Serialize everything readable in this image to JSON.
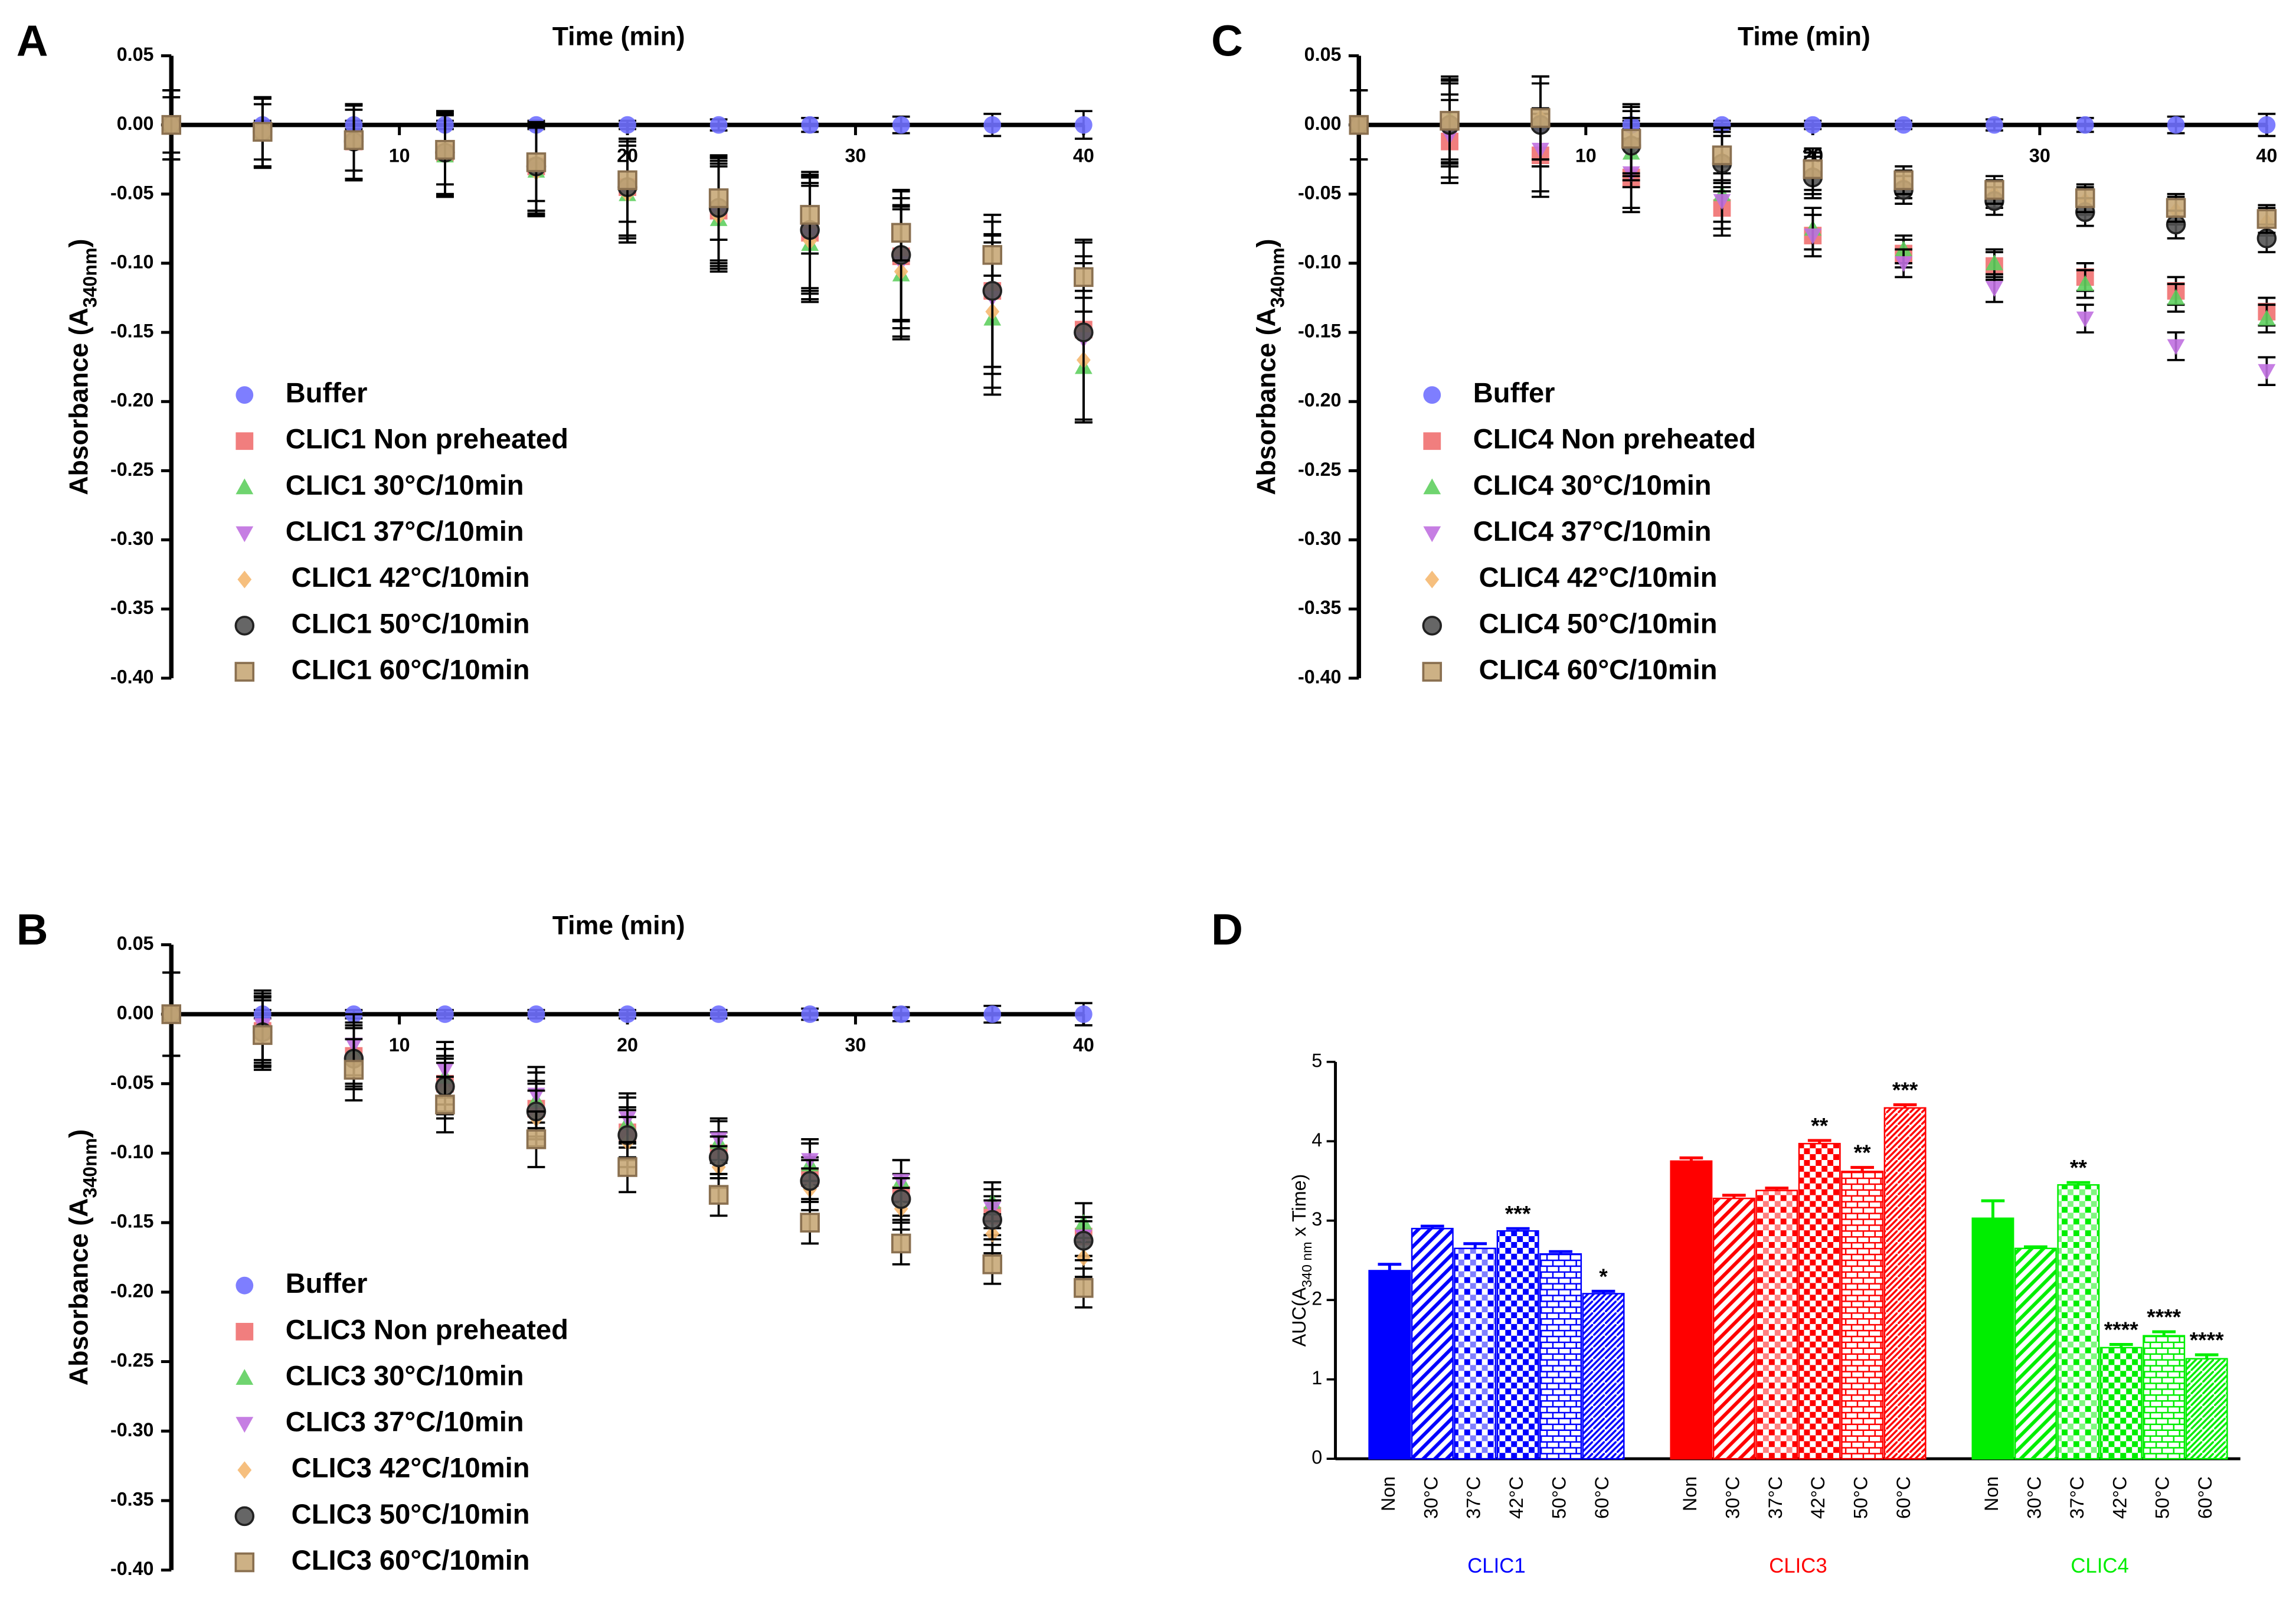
{
  "chart_data": [
    {
      "type": "scatter",
      "panel": "A",
      "xlabel": "Time (min)",
      "ylabel_parts": [
        "Absorbance (A",
        "340nm",
        ")"
      ],
      "xlim": [
        0,
        40
      ],
      "xticks": [
        10,
        20,
        30,
        40
      ],
      "ylim": [
        -0.4,
        0.05
      ],
      "yticks": [
        0.05,
        {
          "value": 0,
          "label": "0.00"
        },
        -0.05,
        {
          "value": -0.1,
          "label": "-0.10"
        },
        -0.15,
        {
          "value": -0.2,
          "label": "-0.20"
        },
        -0.25,
        {
          "value": -0.3,
          "label": "-0.30"
        },
        -0.35,
        {
          "value": -0.4,
          "label": "-0.40"
        }
      ],
      "legend": "lower left",
      "x": [
        0,
        4,
        8,
        12,
        16,
        20,
        24,
        28,
        32,
        36,
        40
      ],
      "series": [
        {
          "name": "Buffer",
          "color": "#7070ff",
          "marker": "circle",
          "values": [
            0,
            0,
            0,
            0,
            0,
            0,
            0,
            0,
            0,
            0,
            0
          ],
          "errors": [
            0.003,
            0.003,
            0.003,
            0.003,
            0.003,
            0.003,
            0.004,
            0.005,
            0.006,
            0.008,
            0.01
          ]
        },
        {
          "name": "CLIC1 Non preheated",
          "color": "#f07070",
          "marker": "square",
          "values": [
            0,
            -0.005,
            -0.012,
            -0.02,
            -0.03,
            -0.045,
            -0.062,
            -0.078,
            -0.095,
            -0.12,
            -0.148
          ],
          "errors": [
            0.025,
            0.025,
            0.027,
            0.03,
            0.032,
            0.035,
            0.038,
            0.042,
            0.047,
            0.055,
            0.065
          ]
        },
        {
          "name": "CLIC1 30°C/10min",
          "color": "#5fcf5f",
          "marker": "triangle",
          "values": [
            0,
            -0.006,
            -0.013,
            -0.022,
            -0.033,
            -0.05,
            -0.068,
            -0.086,
            -0.108,
            -0.14,
            -0.175
          ],
          "errors": [
            0.025,
            0.025,
            0.027,
            0.03,
            0.032,
            0.035,
            0.038,
            0.042,
            0.047,
            0.055,
            0.04
          ]
        },
        {
          "name": "CLIC1 37°C/10min",
          "color": "#c070e0",
          "marker": "triangle-down",
          "values": [
            0,
            -0.005,
            -0.012,
            -0.021,
            -0.032,
            -0.047,
            -0.064,
            -0.08,
            -0.1,
            -0.125,
            -0.155
          ],
          "errors": [
            0.025,
            0.025,
            0.027,
            0.03,
            0.032,
            0.035,
            0.038,
            0.042,
            0.047,
            0.055,
            0.06
          ]
        },
        {
          "name": "CLIC1 42°C/10min",
          "color": "#f5b870",
          "marker": "diamond",
          "values": [
            0,
            -0.006,
            -0.013,
            -0.022,
            -0.034,
            -0.05,
            -0.066,
            -0.084,
            -0.106,
            -0.135,
            -0.17
          ],
          "errors": [
            0.025,
            0.025,
            0.027,
            0.03,
            0.032,
            0.035,
            0.038,
            0.042,
            0.047,
            0.055,
            0.045
          ]
        },
        {
          "name": "CLIC1 50°C/10min",
          "color": "#555555",
          "edgecolor": "#222222",
          "marker": "circle",
          "values": [
            0,
            -0.005,
            -0.012,
            -0.02,
            -0.03,
            -0.045,
            -0.06,
            -0.076,
            -0.094,
            -0.12,
            -0.15
          ],
          "errors": [
            0.025,
            0.025,
            0.027,
            0.03,
            0.032,
            0.035,
            0.038,
            0.042,
            0.047,
            0.055,
            0.065
          ]
        },
        {
          "name": "CLIC1 60°C/10min",
          "color": "#c8a878",
          "edgecolor": "#8a7050",
          "marker": "square",
          "values": [
            0,
            -0.005,
            -0.011,
            -0.018,
            -0.027,
            -0.04,
            -0.053,
            -0.065,
            -0.078,
            -0.094,
            -0.11
          ],
          "errors": [
            0.02,
            0.02,
            0.022,
            0.025,
            0.028,
            0.03,
            0.03,
            0.028,
            0.02,
            0.015,
            0.01
          ]
        }
      ]
    },
    {
      "type": "scatter",
      "panel": "B",
      "xlabel": "Time (min)",
      "ylabel_parts": [
        "Absorbance (A",
        "340nm",
        ")"
      ],
      "xlim": [
        0,
        40
      ],
      "xticks": [
        10,
        20,
        30,
        40
      ],
      "ylim": [
        -0.4,
        0.05
      ],
      "yticks": [
        0.05,
        {
          "value": 0,
          "label": "0.00"
        },
        -0.05,
        {
          "value": -0.1,
          "label": "-0.10"
        },
        -0.15,
        {
          "value": -0.2,
          "label": "-0.20"
        },
        -0.25,
        {
          "value": -0.3,
          "label": "-0.30"
        },
        -0.35,
        {
          "value": -0.4,
          "label": "-0.40"
        }
      ],
      "legend": "lower left",
      "x": [
        0,
        4,
        8,
        12,
        16,
        20,
        24,
        28,
        32,
        36,
        40
      ],
      "series": [
        {
          "name": "Buffer",
          "color": "#7070ff",
          "marker": "circle",
          "values": [
            0,
            0,
            0,
            0,
            0,
            0,
            0,
            0,
            0,
            0,
            0
          ],
          "errors": [
            0.003,
            0.003,
            0.003,
            0.003,
            0.003,
            0.003,
            0.003,
            0.004,
            0.005,
            0.006,
            0.008
          ]
        },
        {
          "name": "CLIC3 Non preheated",
          "color": "#f07070",
          "marker": "square",
          "values": [
            0,
            -0.012,
            -0.03,
            -0.05,
            -0.068,
            -0.085,
            -0.1,
            -0.118,
            -0.13,
            -0.145,
            -0.16
          ],
          "errors": [
            0.03,
            0.025,
            0.022,
            0.02,
            0.02,
            0.018,
            0.015,
            0.015,
            0.015,
            0.014,
            0.014
          ]
        },
        {
          "name": "CLIC3 30°C/10min",
          "color": "#5fcf5f",
          "marker": "triangle",
          "values": [
            0,
            -0.01,
            -0.028,
            -0.045,
            -0.062,
            -0.078,
            -0.092,
            -0.108,
            -0.12,
            -0.135,
            -0.15
          ],
          "errors": [
            0.03,
            0.025,
            0.022,
            0.02,
            0.02,
            0.018,
            0.015,
            0.015,
            0.015,
            0.014,
            0.014
          ]
        },
        {
          "name": "CLIC3 37°C/10min",
          "color": "#c070e0",
          "marker": "triangle-down",
          "values": [
            0,
            -0.008,
            -0.022,
            -0.04,
            -0.058,
            -0.075,
            -0.09,
            -0.105,
            -0.12,
            -0.14,
            -0.16
          ],
          "errors": [
            0.03,
            0.025,
            0.022,
            0.02,
            0.02,
            0.018,
            0.015,
            0.015,
            0.015,
            0.014,
            0.014
          ]
        },
        {
          "name": "CLIC3 42°C/10min",
          "color": "#f5b870",
          "marker": "diamond",
          "values": [
            0,
            -0.012,
            -0.032,
            -0.055,
            -0.075,
            -0.092,
            -0.11,
            -0.126,
            -0.14,
            -0.158,
            -0.175
          ],
          "errors": [
            0.03,
            0.025,
            0.022,
            0.02,
            0.02,
            0.018,
            0.015,
            0.015,
            0.015,
            0.014,
            0.014
          ]
        },
        {
          "name": "CLIC3 50°C/10min",
          "color": "#555555",
          "edgecolor": "#222222",
          "marker": "circle",
          "values": [
            0,
            -0.013,
            -0.032,
            -0.052,
            -0.07,
            -0.087,
            -0.103,
            -0.12,
            -0.133,
            -0.148,
            -0.163
          ],
          "errors": [
            0.03,
            0.025,
            0.022,
            0.02,
            0.02,
            0.018,
            0.015,
            0.015,
            0.015,
            0.014,
            0.014
          ]
        },
        {
          "name": "CLIC3 60°C/10min",
          "color": "#c8a878",
          "edgecolor": "#8a7050",
          "marker": "square",
          "values": [
            0,
            -0.015,
            -0.04,
            -0.065,
            -0.09,
            -0.11,
            -0.13,
            -0.15,
            -0.165,
            -0.18,
            -0.197
          ],
          "errors": [
            0.03,
            0.025,
            0.022,
            0.02,
            0.02,
            0.018,
            0.015,
            0.015,
            0.015,
            0.014,
            0.014
          ]
        }
      ]
    },
    {
      "type": "scatter",
      "panel": "C",
      "xlabel": "Time (min)",
      "ylabel_parts": [
        "Absorbance (A",
        "340nm",
        ")"
      ],
      "xlim": [
        0,
        40
      ],
      "xticks": [
        10,
        20,
        30,
        40
      ],
      "ylim": [
        -0.4,
        0.05
      ],
      "yticks": [
        0.05,
        {
          "value": 0,
          "label": "0.00"
        },
        -0.05,
        {
          "value": -0.1,
          "label": "-0.10"
        },
        -0.15,
        {
          "value": -0.2,
          "label": "-0.20"
        },
        -0.25,
        {
          "value": -0.3,
          "label": "-0.30"
        },
        -0.35,
        {
          "value": -0.4,
          "label": "-0.40"
        }
      ],
      "legend": "lower left",
      "x": [
        0,
        4,
        8,
        12,
        16,
        20,
        24,
        28,
        32,
        36,
        40
      ],
      "series": [
        {
          "name": "Buffer",
          "color": "#7070ff",
          "marker": "circle",
          "values": [
            0,
            0,
            0,
            0,
            0,
            0,
            0,
            0,
            0,
            0,
            0
          ],
          "errors": [
            0.003,
            0.003,
            0.003,
            0.003,
            0.003,
            0.003,
            0.003,
            0.004,
            0.005,
            0.006,
            0.008
          ]
        },
        {
          "name": "CLIC4 Non preheated",
          "color": "#f07070",
          "marker": "square",
          "values": [
            0,
            -0.012,
            -0.022,
            -0.038,
            -0.06,
            -0.08,
            -0.093,
            -0.102,
            -0.11,
            -0.12,
            -0.135
          ],
          "errors": [
            0.025,
            0.03,
            0.03,
            0.025,
            0.02,
            0.015,
            0.01,
            0.01,
            0.01,
            0.01,
            0.01
          ]
        },
        {
          "name": "CLIC4 30°C/10min",
          "color": "#5fcf5f",
          "marker": "triangle",
          "values": [
            0,
            0.005,
            0.005,
            -0.02,
            -0.05,
            -0.075,
            -0.09,
            -0.1,
            -0.115,
            -0.125,
            -0.14
          ],
          "errors": [
            0.025,
            0.03,
            0.03,
            0.025,
            0.02,
            0.015,
            0.01,
            0.01,
            0.01,
            0.01,
            0.01
          ]
        },
        {
          "name": "CLIC4 37°C/10min",
          "color": "#c070e0",
          "marker": "triangle-down",
          "values": [
            0,
            -0.008,
            -0.018,
            -0.035,
            -0.055,
            -0.08,
            -0.1,
            -0.118,
            -0.14,
            -0.16,
            -0.178
          ],
          "errors": [
            0.025,
            0.03,
            0.03,
            0.025,
            0.02,
            0.015,
            0.01,
            0.01,
            0.01,
            0.01,
            0.01
          ]
        },
        {
          "name": "CLIC4 42°C/10min",
          "color": "#f5b870",
          "marker": "diamond",
          "values": [
            0,
            0.002,
            0.005,
            -0.012,
            -0.025,
            -0.035,
            -0.043,
            -0.05,
            -0.055,
            -0.062,
            -0.07
          ],
          "errors": [
            0.025,
            0.03,
            0.03,
            0.025,
            0.02,
            0.015,
            0.01,
            0.01,
            0.01,
            0.01,
            0.01
          ]
        },
        {
          "name": "CLIC4 50°C/10min",
          "color": "#555555",
          "edgecolor": "#222222",
          "marker": "circle",
          "values": [
            0,
            0,
            0,
            -0.015,
            -0.028,
            -0.038,
            -0.047,
            -0.055,
            -0.063,
            -0.072,
            -0.082
          ],
          "errors": [
            0.025,
            0.03,
            0.03,
            0.025,
            0.02,
            0.015,
            0.01,
            0.01,
            0.01,
            0.01,
            0.01
          ]
        },
        {
          "name": "CLIC4 60°C/10min",
          "color": "#c8a878",
          "edgecolor": "#8a7050",
          "marker": "square",
          "values": [
            0,
            0.003,
            0.005,
            -0.01,
            -0.022,
            -0.032,
            -0.04,
            -0.047,
            -0.053,
            -0.06,
            -0.068
          ],
          "errors": [
            0.025,
            0.03,
            0.03,
            0.025,
            0.02,
            0.015,
            0.01,
            0.01,
            0.01,
            0.01,
            0.01
          ]
        }
      ]
    },
    {
      "type": "bar",
      "panel": "D",
      "ylabel_parts": [
        "AUC(A",
        "340 nm",
        " x Time)"
      ],
      "ylim": [
        0,
        5
      ],
      "yticks": [
        0,
        1,
        2,
        3,
        4,
        5
      ],
      "categories": [
        "Non",
        "30°C",
        "37°C",
        "42°C",
        "50°C",
        "60°C"
      ],
      "groups": [
        {
          "name": "CLIC1",
          "color": "#0000ff",
          "values": [
            2.37,
            2.9,
            2.65,
            2.87,
            2.58,
            2.08
          ],
          "errors": [
            0.08,
            0.03,
            0.06,
            0.03,
            0.03,
            0.03
          ],
          "stars": [
            null,
            null,
            null,
            "***",
            null,
            "*"
          ]
        },
        {
          "name": "CLIC3",
          "color": "#ff0000",
          "values": [
            3.75,
            3.28,
            3.38,
            3.97,
            3.62,
            4.42
          ],
          "errors": [
            0.04,
            0.04,
            0.03,
            0.04,
            0.05,
            0.04
          ],
          "stars": [
            null,
            null,
            null,
            "**",
            "**",
            "***"
          ]
        },
        {
          "name": "CLIC4",
          "color": "#00ee00",
          "values": [
            3.03,
            2.65,
            3.45,
            1.4,
            1.55,
            1.26
          ],
          "errors": [
            0.22,
            0.02,
            0.03,
            0.04,
            0.05,
            0.05
          ],
          "stars": [
            null,
            null,
            "**",
            "****",
            "****",
            "****"
          ]
        }
      ]
    }
  ]
}
